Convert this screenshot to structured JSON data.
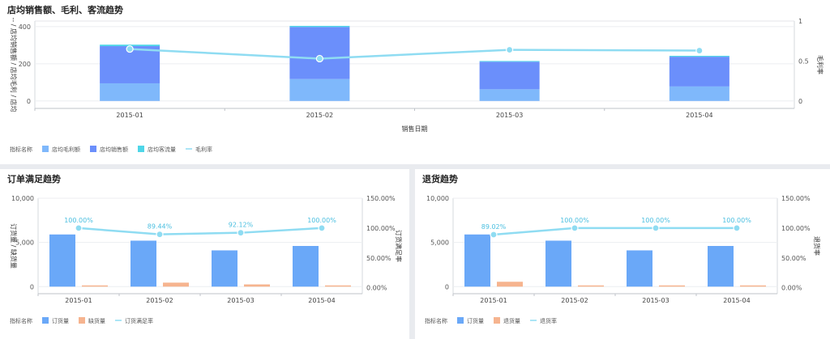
{
  "panels": {
    "top": {
      "title": "店均销售额、毛利、客流趋势"
    },
    "order": {
      "title": "订单满足趋势"
    },
    "ret": {
      "title": "退货趋势"
    }
  },
  "colors": {
    "profit": "#7fb8fb",
    "sales": "#6b8ffb",
    "traffic": "#4fd6e8",
    "rate": "#8fdcf2",
    "order_qty": "#6aa8f8",
    "shortage": "#f6b48f",
    "return_qty": "#f6b48f"
  },
  "chart_data": [
    {
      "type": "bar",
      "stacked": true,
      "title": "店均销售额、毛利、客流趋势",
      "xlabel": "销售日期",
      "ylabel": "-- / 店均销售额 / 店均毛利 / 店均",
      "y2label": "毛利率",
      "legend_title": "指标名称",
      "categories": [
        "2015-01",
        "2015-02",
        "2015-03",
        "2015-04"
      ],
      "ylim": [
        -40,
        430
      ],
      "yticks": [
        0,
        200,
        400
      ],
      "y2lim": [
        -0.093,
        1.0
      ],
      "y2ticks": [
        0,
        0.5,
        1
      ],
      "y2tick_labels": [
        "0",
        "0.5",
        "1"
      ],
      "grid": true,
      "legend_position": "bottom-left",
      "series": [
        {
          "name": "店均毛利额",
          "kind": "bar",
          "color_key": "profit",
          "values": [
            95,
            118,
            63,
            78
          ]
        },
        {
          "name": "店均销售额",
          "kind": "bar",
          "color_key": "sales",
          "values": [
            200,
            280,
            148,
            160
          ]
        },
        {
          "name": "店均客流量",
          "kind": "bar",
          "color_key": "traffic",
          "values": [
            8,
            6,
            4,
            5
          ]
        },
        {
          "name": "毛利率",
          "kind": "line",
          "axis": "right",
          "color_key": "rate",
          "values": [
            0.65,
            0.53,
            0.64,
            0.63
          ]
        }
      ]
    },
    {
      "type": "bar",
      "title": "订单满足趋势",
      "ylabel": "订货量 / 缺货量",
      "y2label": "订货满足率",
      "legend_title": "指标名称",
      "categories": [
        "2015-01",
        "2015-02",
        "2015-03",
        "2015-04"
      ],
      "ylim": [
        -800,
        10000
      ],
      "yticks": [
        0,
        5000,
        10000
      ],
      "ytick_labels": [
        "0",
        "5,000",
        "10,000"
      ],
      "y2lim": [
        -0.1,
        1.5
      ],
      "y2ticks": [
        0,
        0.5,
        1.0,
        1.5
      ],
      "y2tick_labels": [
        "0.00%",
        "50.00%",
        "100.00%",
        "150.00%"
      ],
      "grid": true,
      "legend_position": "bottom-left",
      "series": [
        {
          "name": "订货量",
          "kind": "bar",
          "color_key": "order_qty",
          "values": [
            5900,
            5200,
            4100,
            4600
          ]
        },
        {
          "name": "缺货量",
          "kind": "bar",
          "color_key": "shortage",
          "values": [
            50,
            450,
            250,
            60
          ]
        },
        {
          "name": "订货满足率",
          "kind": "line",
          "axis": "right",
          "color_key": "rate",
          "values": [
            1.0,
            0.8944,
            0.9212,
            1.0
          ],
          "labels": [
            "100.00%",
            "89.44%",
            "92.12%",
            "100.00%"
          ]
        }
      ]
    },
    {
      "type": "bar",
      "title": "退货趋势",
      "ylabel": "",
      "y2label": "退货率",
      "legend_title": "指标名称",
      "categories": [
        "2015-01",
        "2015-02",
        "2015-03",
        "2015-04"
      ],
      "ylim": [
        -800,
        10000
      ],
      "yticks": [
        0,
        5000,
        10000
      ],
      "ytick_labels": [
        "0",
        "5,000",
        "10,000"
      ],
      "y2lim": [
        -0.1,
        1.5
      ],
      "y2ticks": [
        0,
        0.5,
        1.0,
        1.5
      ],
      "y2tick_labels": [
        "0.00%",
        "50.00%",
        "100.00%",
        "150.00%"
      ],
      "grid": true,
      "legend_position": "bottom-left",
      "series": [
        {
          "name": "订货量",
          "kind": "bar",
          "color_key": "order_qty",
          "values": [
            5900,
            5200,
            4100,
            4600
          ]
        },
        {
          "name": "退货量",
          "kind": "bar",
          "color_key": "return_qty",
          "values": [
            550,
            0,
            0,
            0
          ]
        },
        {
          "name": "退货率",
          "kind": "line",
          "axis": "right",
          "color_key": "rate",
          "values": [
            0.8902,
            1.0,
            1.0,
            1.0
          ],
          "labels": [
            "89.02%",
            "100.00%",
            "100.00%",
            "100.00%"
          ]
        }
      ]
    }
  ]
}
